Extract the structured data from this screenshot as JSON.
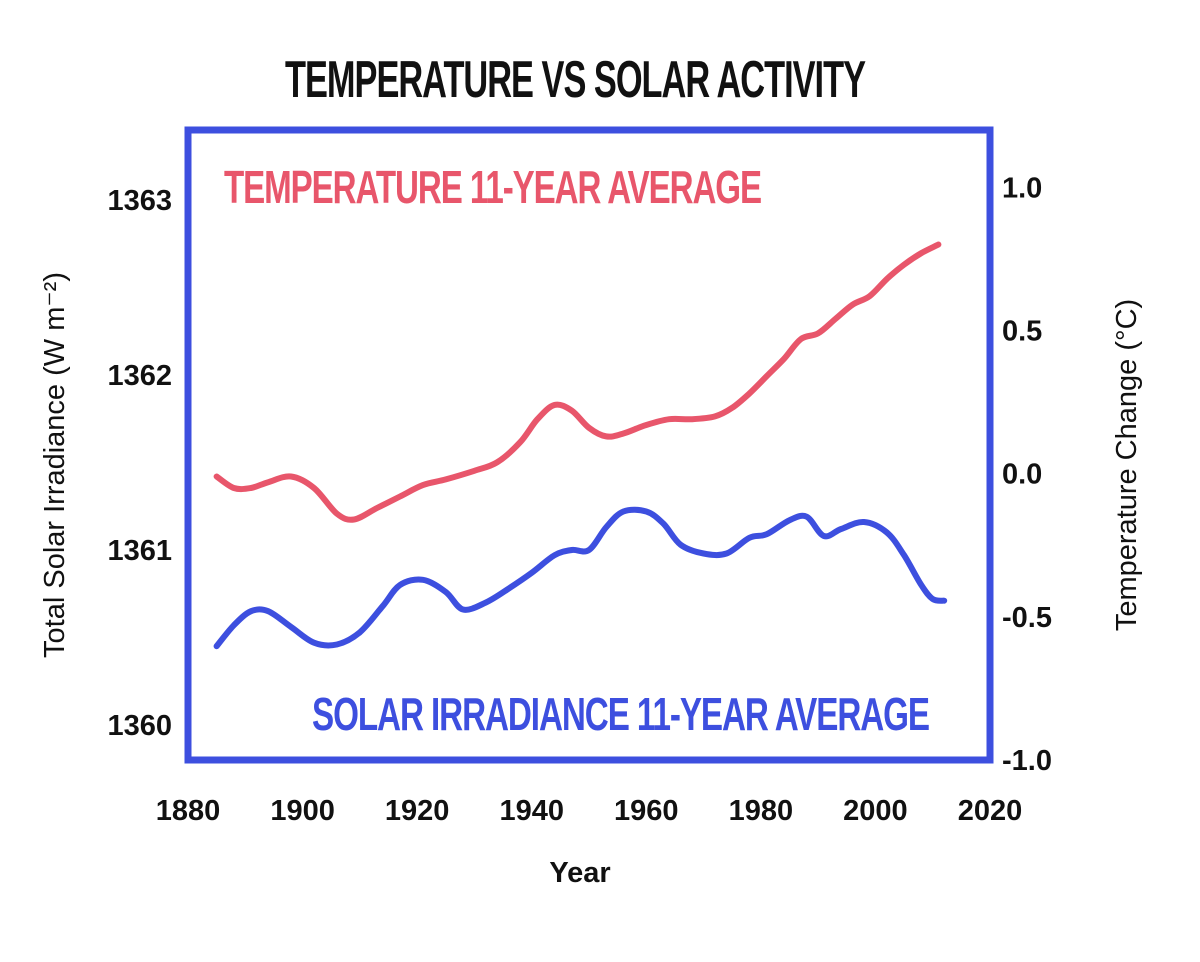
{
  "chart_data": {
    "type": "line",
    "title": "TEMPERATURE VS SOLAR ACTIVITY",
    "xlabel": "Year",
    "ylabel_left": "Total Solar Irradiance (W m⁻²)",
    "ylabel_right": "Temperature Change (°C)",
    "xlim": [
      1880,
      2020
    ],
    "ylim_left": [
      1359.8,
      1363.4
    ],
    "ylim_right": [
      -1.0,
      1.2
    ],
    "x_ticks": [
      "1880",
      "1900",
      "1920",
      "1940",
      "1960",
      "1980",
      "2000",
      "2020"
    ],
    "y_left_ticks": [
      "1360",
      "1361",
      "1362",
      "1363"
    ],
    "y_right_ticks": [
      "-1.0",
      "-0.5",
      "0.0",
      "0.5",
      "1.0"
    ],
    "series": [
      {
        "name": "TEMPERATURE 11-YEAR AVERAGE",
        "axis": "right",
        "color": "#e8566b",
        "x": [
          1885,
          1888,
          1891,
          1894,
          1898,
          1902,
          1906,
          1909,
          1913,
          1917,
          1921,
          1925,
          1930,
          1934,
          1938,
          1941,
          1944,
          1947,
          1950,
          1953,
          1956,
          1960,
          1964,
          1968,
          1972,
          1975,
          1978,
          1981,
          1984,
          1987,
          1990,
          1993,
          1996,
          1999,
          2002,
          2005,
          2008,
          2011
        ],
        "values": [
          -0.01,
          -0.05,
          -0.05,
          -0.03,
          -0.01,
          -0.05,
          -0.14,
          -0.16,
          -0.12,
          -0.08,
          -0.04,
          -0.02,
          0.01,
          0.04,
          0.11,
          0.19,
          0.24,
          0.22,
          0.16,
          0.13,
          0.14,
          0.17,
          0.19,
          0.19,
          0.2,
          0.23,
          0.28,
          0.34,
          0.4,
          0.47,
          0.49,
          0.54,
          0.59,
          0.62,
          0.68,
          0.73,
          0.77,
          0.8
        ]
      },
      {
        "name": "SOLAR IRRADIANCE 11-YEAR AVERAGE",
        "axis": "left",
        "color": "#3d4fdf",
        "x": [
          1885,
          1888,
          1891,
          1894,
          1898,
          1902,
          1906,
          1910,
          1914,
          1917,
          1921,
          1925,
          1928,
          1932,
          1936,
          1940,
          1944,
          1947,
          1950,
          1953,
          1956,
          1960,
          1963,
          1966,
          1970,
          1974,
          1978,
          1981,
          1985,
          1988,
          1991,
          1994,
          1998,
          2002,
          2005,
          2008,
          2010,
          2012
        ],
        "values": [
          1360.45,
          1360.57,
          1360.65,
          1360.65,
          1360.56,
          1360.47,
          1360.46,
          1360.53,
          1360.68,
          1360.8,
          1360.83,
          1360.76,
          1360.66,
          1360.7,
          1360.78,
          1360.87,
          1360.97,
          1361.0,
          1361.0,
          1361.13,
          1361.22,
          1361.22,
          1361.15,
          1361.03,
          1360.98,
          1360.98,
          1361.07,
          1361.09,
          1361.17,
          1361.19,
          1361.08,
          1361.12,
          1361.16,
          1361.1,
          1360.97,
          1360.8,
          1360.72,
          1360.71
        ]
      }
    ],
    "frame_color": "#3d4fdf",
    "grid": false,
    "legend": "inside labels (top-left and bottom-right)"
  }
}
